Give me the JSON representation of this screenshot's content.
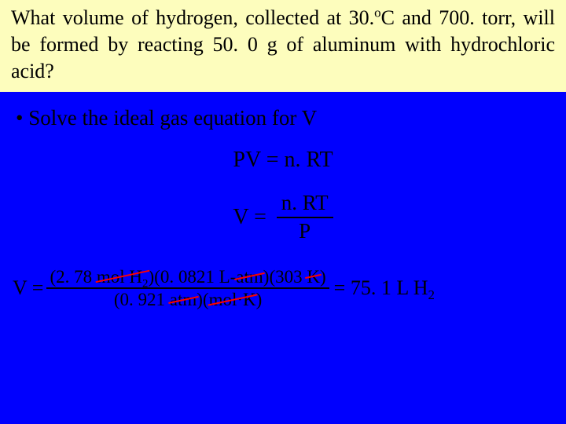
{
  "colors": {
    "question_bg": "#fdfdbd",
    "question_text": "#000000",
    "work_bg": "#0000fe",
    "work_text": "#000000",
    "strike": "#ff0000",
    "frac_rule": "#000000"
  },
  "question": {
    "prefix": "What volume of hydrogen, collected at 30.",
    "sup_o": "o",
    "after_sup": "C and 700. torr, will be formed by reacting 50. 0 g of aluminum with hydrochloric acid?"
  },
  "bullet": "• Solve the ideal gas equation for V",
  "eq_pv": "PV = n. RT",
  "eq_v_lhs": "V =",
  "eq_v_num": "n. RT",
  "eq_v_den": "P",
  "final": {
    "lhs": "V =",
    "num_open": "(2. 78 ",
    "num_s1": "mol H",
    "num_s1_sub": "2",
    "num_mid1": ")(0. 0821 L-",
    "num_s2": "atm",
    "num_mid2": ")(303 ",
    "num_s3": "K",
    "num_close": ")",
    "den_open": "(0. 921 ",
    "den_s1": "atm",
    "den_mid": ")(",
    "den_s2": "mol·K",
    "den_close": ")",
    "equals": " = 75. 1 L H",
    "result_sub": "2"
  }
}
